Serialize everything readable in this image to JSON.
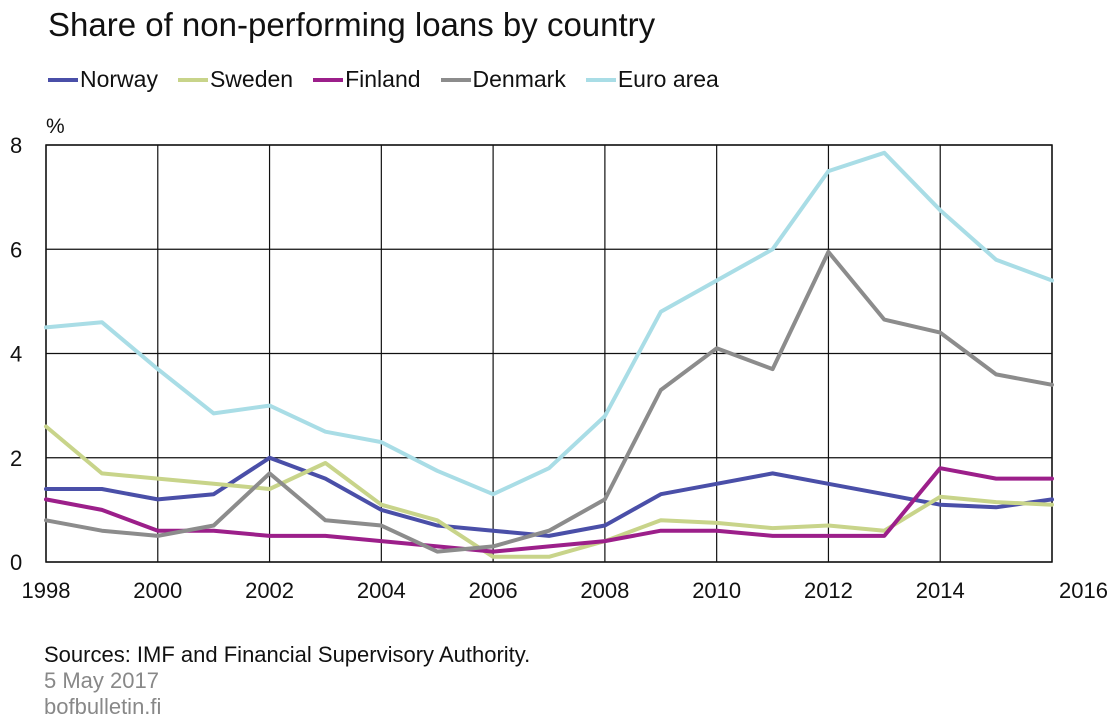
{
  "chart_data": {
    "type": "line",
    "title": "Share of non-performing loans by country",
    "ylabel": "%",
    "ylim": [
      0,
      8
    ],
    "yticks": [
      0,
      2,
      4,
      6,
      8
    ],
    "xlim": [
      1998,
      2016
    ],
    "xticks": [
      "1998",
      "2000",
      "2002",
      "2004",
      "2006",
      "2008",
      "2010",
      "2012",
      "2014",
      "2016"
    ],
    "x": [
      1998.0,
      1999.0,
      2000.0,
      2001.0,
      2002.0,
      2003.0,
      2004.0,
      2005.0,
      2006.0,
      2007.0,
      2008.0,
      2009.0,
      2010.0,
      2011.0,
      2012.0,
      2013.0,
      2014.0,
      2015.0,
      2016.0
    ],
    "grid": true,
    "legend_position": "top",
    "series": [
      {
        "name": "Norway",
        "color": "#4a4fa8",
        "values": [
          1.4,
          1.4,
          1.2,
          1.3,
          2.0,
          1.6,
          1.0,
          0.7,
          0.6,
          0.5,
          0.7,
          1.3,
          1.5,
          1.7,
          1.5,
          1.3,
          1.1,
          1.05,
          1.2
        ]
      },
      {
        "name": "Sweden",
        "color": "#c8d48a",
        "values": [
          2.6,
          1.7,
          1.6,
          1.5,
          1.4,
          1.9,
          1.1,
          0.8,
          0.1,
          0.1,
          0.4,
          0.8,
          0.75,
          0.65,
          0.7,
          0.6,
          1.25,
          1.15,
          1.1
        ]
      },
      {
        "name": "Finland",
        "color": "#9c1f8a",
        "values": [
          1.2,
          1.0,
          0.6,
          0.6,
          0.5,
          0.5,
          0.4,
          0.3,
          0.2,
          0.3,
          0.4,
          0.6,
          0.6,
          0.5,
          0.5,
          0.5,
          1.8,
          1.6,
          1.6
        ]
      },
      {
        "name": "Denmark",
        "color": "#8c8c8c",
        "values": [
          0.8,
          0.6,
          0.5,
          0.7,
          1.7,
          0.8,
          0.7,
          0.2,
          0.3,
          0.6,
          1.2,
          3.3,
          4.1,
          3.7,
          5.95,
          4.65,
          4.4,
          3.6,
          3.4
        ]
      },
      {
        "name": "Euro area",
        "color": "#a9dde6",
        "values": [
          4.5,
          4.6,
          3.7,
          2.85,
          3.0,
          2.5,
          2.3,
          1.75,
          1.3,
          1.8,
          2.8,
          4.8,
          5.4,
          6.0,
          7.5,
          7.85,
          6.75,
          5.8,
          5.4
        ]
      }
    ]
  },
  "footer": {
    "sources": "Sources: IMF and Financial Supervisory Authority.",
    "date": "5 May 2017",
    "site": "bofbulletin.fi"
  }
}
